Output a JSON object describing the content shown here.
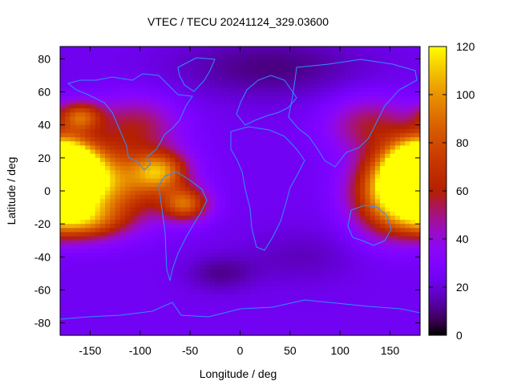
{
  "chart_data": {
    "type": "heatmap",
    "title": "VTEC / TECU 20241124_329.03600",
    "xlabel": "Longitude / deg",
    "ylabel": "Latitude / deg",
    "xlim": [
      -180,
      180
    ],
    "ylim": [
      -87.5,
      87.5
    ],
    "xticks": [
      -150,
      -100,
      -50,
      0,
      50,
      100,
      150
    ],
    "yticks": [
      -80,
      -60,
      -40,
      -20,
      0,
      20,
      40,
      60,
      80
    ],
    "colorbar": {
      "min": 0,
      "max": 120,
      "ticks": [
        0,
        20,
        40,
        60,
        80,
        100,
        120
      ],
      "palette": "gnuplot-pm3d"
    },
    "grid": false,
    "background_level": 24,
    "features": [
      {
        "name": "pacific-core",
        "lon": -175,
        "lat": 12,
        "peak": 98,
        "sx": 22,
        "sy": 13
      },
      {
        "name": "pacific-band",
        "lon": -140,
        "lat": 5,
        "peak": 76,
        "sx": 45,
        "sy": 15
      },
      {
        "name": "pacific-south",
        "lon": -160,
        "lat": -18,
        "peak": 58,
        "sx": 30,
        "sy": 8
      },
      {
        "name": "americas-north",
        "lon": -80,
        "lat": 12,
        "peak": 56,
        "sx": 18,
        "sy": 8
      },
      {
        "name": "americas-south",
        "lon": -55,
        "lat": -8,
        "peak": 58,
        "sx": 16,
        "sy": 7
      },
      {
        "name": "west-arc",
        "lon": -105,
        "lat": 40,
        "peak": 30,
        "sx": 30,
        "sy": 12
      },
      {
        "name": "north-pacific",
        "lon": -160,
        "lat": 45,
        "peak": 54,
        "sx": 15,
        "sy": 6
      },
      {
        "name": "west-pacific-core",
        "lon": 178,
        "lat": 10,
        "peak": 92,
        "sx": 22,
        "sy": 13
      },
      {
        "name": "west-pacific-band",
        "lon": 150,
        "lat": -2,
        "peak": 70,
        "sx": 26,
        "sy": 16
      },
      {
        "name": "asia-arc",
        "lon": 130,
        "lat": 40,
        "peak": 30,
        "sx": 30,
        "sy": 12
      },
      {
        "name": "polar-north-low",
        "lon": 30,
        "lat": 75,
        "peak": -14,
        "sx": 70,
        "sy": 14
      },
      {
        "name": "south-atlantic-low",
        "lon": -20,
        "lat": -50,
        "peak": -12,
        "sx": 25,
        "sy": 8
      },
      {
        "name": "indian-ocean-low",
        "lon": 60,
        "lat": -40,
        "peak": -8,
        "sx": 40,
        "sy": 12
      }
    ]
  }
}
